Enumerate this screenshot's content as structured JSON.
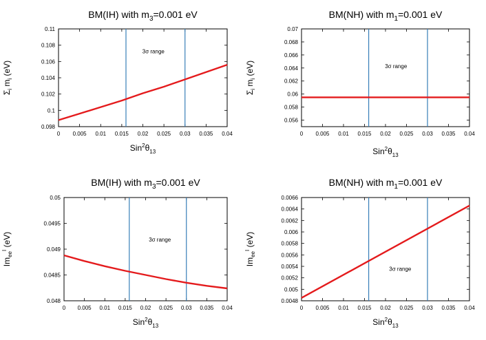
{
  "chart_data": [
    {
      "type": "line",
      "title": "BM(IH) with m",
      "title_sub": "3",
      "title_tail": "=0.001 eV",
      "ylabel_prefix": "Σ",
      "ylabel_sub": "i",
      "ylabel_mid": " m",
      "ylabel_sub2": "i",
      "ylabel_tail": " (eV)",
      "xlabel_main": "Sin",
      "xlabel_sup": "2",
      "xlabel_theta": "θ",
      "xlabel_sub": "13",
      "xlim": [
        0,
        0.04
      ],
      "ylim": [
        0.098,
        0.11
      ],
      "xticks": [
        "0",
        "0.005",
        "0.01",
        "0.015",
        "0.02",
        "0.025",
        "0.03",
        "0.035",
        "0.04"
      ],
      "yticks": [
        "0.098",
        "0.1",
        "0.102",
        "0.104",
        "0.106",
        "0.108",
        "0.11"
      ],
      "vlines": [
        0.016,
        0.03
      ],
      "annotation": "3σ range",
      "annotation_pos": [
        0.0225,
        0.107
      ],
      "series": [
        {
          "name": "Σ m_i",
          "color": "#e41a1c",
          "x": [
            0,
            0.005,
            0.01,
            0.015,
            0.02,
            0.025,
            0.03,
            0.035,
            0.04
          ],
          "y": [
            0.0988,
            0.0996,
            0.1004,
            0.1012,
            0.1021,
            0.1029,
            0.1038,
            0.1047,
            0.1056
          ]
        }
      ]
    },
    {
      "type": "line",
      "title": "BM(NH) with m",
      "title_sub": "1",
      "title_tail": "=0.001 eV",
      "ylabel_prefix": "Σ",
      "ylabel_sub": "i",
      "ylabel_mid": " m",
      "ylabel_sub2": "i",
      "ylabel_tail": " (eV)",
      "xlabel_main": "Sin",
      "xlabel_sup": "2",
      "xlabel_theta": "θ",
      "xlabel_sub": "13",
      "xlim": [
        0,
        0.04
      ],
      "ylim": [
        0.055,
        0.07
      ],
      "xticks": [
        "0",
        "0.005",
        "0.01",
        "0.015",
        "0.02",
        "0.025",
        "0.03",
        "0.035",
        "0.04"
      ],
      "yticks": [
        "0.056",
        "0.058",
        "0.06",
        "0.062",
        "0.064",
        "0.066",
        "0.068",
        "0.07"
      ],
      "vlines": [
        0.016,
        0.03
      ],
      "annotation": "3σ range",
      "annotation_pos": [
        0.0225,
        0.064
      ],
      "series": [
        {
          "name": "Σ m_i",
          "color": "#e41a1c",
          "x": [
            0,
            0.04
          ],
          "y": [
            0.0595,
            0.0595
          ]
        }
      ]
    },
    {
      "type": "line",
      "title": "BM(IH) with m",
      "title_sub": "3",
      "title_tail": "=0.001 eV",
      "ylabel_prefix": "",
      "ylabel_sub": "",
      "ylabel_mid": "Im",
      "ylabel_sub2": "ee",
      "ylabel_sup": "I",
      "ylabel_tail": " (eV)",
      "xlabel_main": "Sin",
      "xlabel_sup": "2",
      "xlabel_theta": "θ",
      "xlabel_sub": "13",
      "xlim": [
        0,
        0.04
      ],
      "ylim": [
        0.048,
        0.05
      ],
      "xticks": [
        "0",
        "0.005",
        "0.01",
        "0.015",
        "0.02",
        "0.025",
        "0.03",
        "0.035",
        "0.04"
      ],
      "yticks": [
        "0.048",
        "0.0485",
        "0.049",
        "0.0495",
        "0.05"
      ],
      "vlines": [
        0.016,
        0.03
      ],
      "annotation": "3σ range",
      "annotation_pos": [
        0.0235,
        0.04915
      ],
      "series": [
        {
          "name": "Im ee",
          "color": "#e41a1c",
          "x": [
            0,
            0.005,
            0.01,
            0.015,
            0.02,
            0.025,
            0.03,
            0.035,
            0.04
          ],
          "y": [
            0.04888,
            0.04877,
            0.04867,
            0.04858,
            0.0485,
            0.04842,
            0.04835,
            0.04829,
            0.04824
          ]
        }
      ]
    },
    {
      "type": "line",
      "title": "BM(NH) with m",
      "title_sub": "1",
      "title_tail": "=0.001 eV",
      "ylabel_prefix": "",
      "ylabel_sub": "",
      "ylabel_mid": "Im",
      "ylabel_sub2": "ee",
      "ylabel_sup": "I",
      "ylabel_tail": " (eV)",
      "xlabel_main": "Sin",
      "xlabel_sup": "2",
      "xlabel_theta": "θ",
      "xlabel_sub": "13",
      "xlim": [
        0,
        0.04
      ],
      "ylim": [
        0.0048,
        0.0066
      ],
      "xticks": [
        "0",
        "0.005",
        "0.01",
        "0.015",
        "0.02",
        "0.025",
        "0.03",
        "0.035",
        "0.04"
      ],
      "yticks": [
        "0.0048",
        "0.005",
        "0.0052",
        "0.0054",
        "0.0056",
        "0.0058",
        "0.006",
        "0.0062",
        "0.0064",
        "0.0066"
      ],
      "vlines": [
        0.016,
        0.03
      ],
      "annotation": "3σ range",
      "annotation_pos": [
        0.0235,
        0.00532
      ],
      "series": [
        {
          "name": "Im ee",
          "color": "#e41a1c",
          "x": [
            0,
            0.04
          ],
          "y": [
            0.00485,
            0.00646
          ]
        }
      ]
    }
  ],
  "colors": {
    "curve": "#e41a1c",
    "vline": "#377eb8",
    "axis": "#000000"
  }
}
